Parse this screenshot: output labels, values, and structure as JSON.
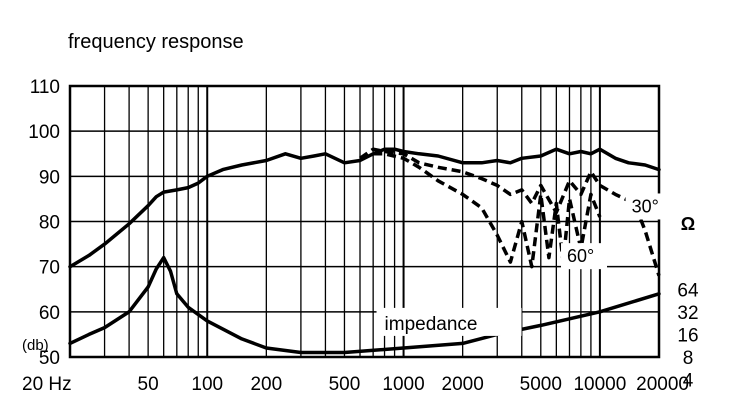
{
  "chart_data": {
    "type": "line",
    "title": "frequency response",
    "x_scale": "log",
    "xlim": [
      20,
      20000
    ],
    "ylim": [
      50,
      110
    ],
    "grid": true,
    "x_ticks": [
      {
        "value": 20,
        "label": "20 Hz"
      },
      {
        "value": 50,
        "label": "50"
      },
      {
        "value": 100,
        "label": "100"
      },
      {
        "value": 200,
        "label": "200"
      },
      {
        "value": 500,
        "label": "500"
      },
      {
        "value": 1000,
        "label": "1000"
      },
      {
        "value": 2000,
        "label": "2000"
      },
      {
        "value": 5000,
        "label": "5000"
      },
      {
        "value": 10000,
        "label": "10000"
      },
      {
        "value": 20000,
        "label": "20000"
      }
    ],
    "y_ticks": [
      50,
      60,
      70,
      80,
      90,
      100,
      110
    ],
    "y_unit_label": "(db)",
    "impedance_axis": {
      "unit_label": "Ω",
      "ticks": [
        {
          "label": "64",
          "db": 65
        },
        {
          "label": "32",
          "db": 60
        },
        {
          "label": "16",
          "db": 55
        },
        {
          "label": "8",
          "db": 50
        },
        {
          "label": "4",
          "db": 45
        }
      ]
    },
    "series": [
      {
        "style": "solid",
        "x": [
          20,
          25,
          30,
          40,
          50,
          55,
          60,
          70,
          80,
          90,
          100,
          120,
          150,
          200,
          250,
          300,
          350,
          400,
          500,
          600,
          700,
          800,
          900,
          1000,
          1200,
          1500,
          2000,
          2500,
          3000,
          3500,
          4000,
          5000,
          6000,
          7000,
          8000,
          9000,
          10000,
          12000,
          14000,
          17000,
          20000
        ],
        "values": [
          70,
          72.5,
          75,
          79.5,
          83.5,
          85.5,
          86.5,
          87,
          87.5,
          88.5,
          90,
          91.5,
          92.5,
          93.5,
          95,
          94,
          94.5,
          95,
          93,
          93.5,
          95,
          96,
          96,
          95.5,
          95,
          94.5,
          93,
          93,
          93.5,
          93,
          94,
          94.5,
          96,
          95,
          95.5,
          95,
          96,
          94,
          93,
          92.5,
          91.5
        ]
      },
      {
        "name": "30°",
        "style": "dashed",
        "x": [
          600,
          700,
          800,
          1000,
          1200,
          1500,
          2000,
          2500,
          3000,
          3500,
          4000,
          4500,
          5000,
          6000,
          7000,
          8000,
          9000,
          10000,
          12000,
          15000,
          17000,
          20000
        ],
        "values": [
          94,
          96,
          95.5,
          95,
          93,
          92,
          91,
          89.5,
          88,
          86,
          87,
          84,
          88,
          82,
          89,
          86,
          91,
          88,
          86,
          84,
          78,
          68
        ]
      },
      {
        "name": "60°",
        "style": "dashed",
        "x": [
          600,
          700,
          800,
          1000,
          1200,
          1500,
          2000,
          2500,
          3000,
          3500,
          4000,
          4500,
          5000,
          5500,
          6000,
          6500,
          7000,
          8000,
          9000,
          10000
        ],
        "values": [
          94,
          95,
          95,
          94,
          92,
          89,
          86,
          83,
          77,
          71,
          80,
          70,
          86,
          72,
          84,
          71,
          85,
          74,
          86,
          81
        ]
      },
      {
        "name": "impedance",
        "style": "solid",
        "x": [
          20,
          25,
          30,
          40,
          50,
          55,
          60,
          65,
          70,
          80,
          100,
          150,
          200,
          300,
          500,
          1000,
          2000,
          3000,
          5000,
          10000,
          20000
        ],
        "values": [
          53,
          55,
          56.5,
          60,
          65.5,
          69.5,
          72,
          69,
          64,
          61,
          58,
          54,
          52,
          51,
          51,
          52,
          53,
          55,
          57,
          60,
          64
        ]
      }
    ],
    "annotations": [
      {
        "text": "30°",
        "x": 14500,
        "y": 82
      },
      {
        "text": "60°",
        "x": 6800,
        "y": 71
      },
      {
        "text": "impedance",
        "x": 800,
        "y": 56
      }
    ]
  }
}
